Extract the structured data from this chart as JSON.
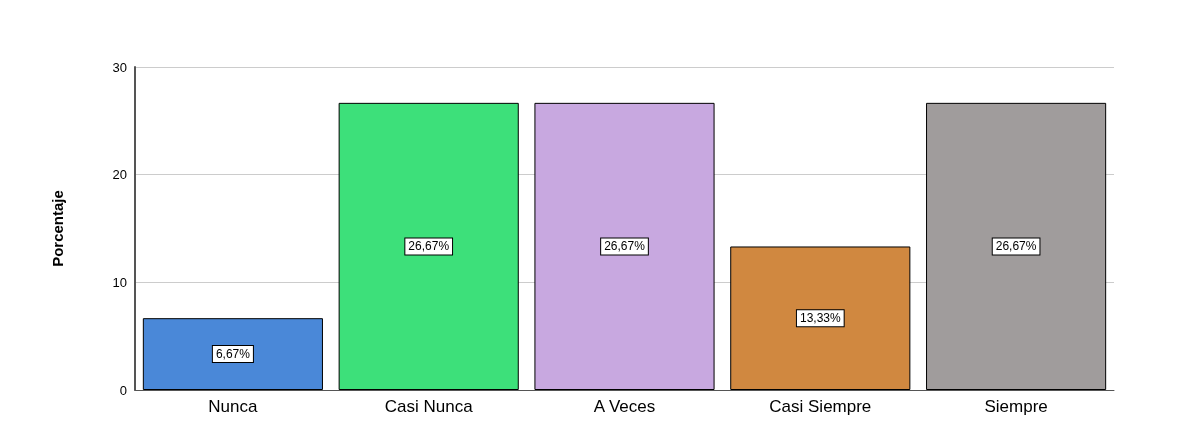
{
  "chart_data": {
    "type": "bar",
    "ylabel": "Porcentaje",
    "categories": [
      "Nunca",
      "Casi Nunca",
      "A Veces",
      "Casi Siempre",
      "Siempre"
    ],
    "values": [
      6.67,
      26.67,
      26.67,
      13.33,
      26.67
    ],
    "value_labels": [
      "6,67%",
      "26,67%",
      "26,67%",
      "13,33%",
      "26,67%"
    ],
    "colors": [
      "#4a88d8",
      "#3de07a",
      "#c8a8e0",
      "#d08840",
      "#a09c9c"
    ],
    "ylim": [
      0,
      30
    ],
    "yticks": [
      0,
      10,
      20,
      30
    ],
    "grid": "y"
  }
}
